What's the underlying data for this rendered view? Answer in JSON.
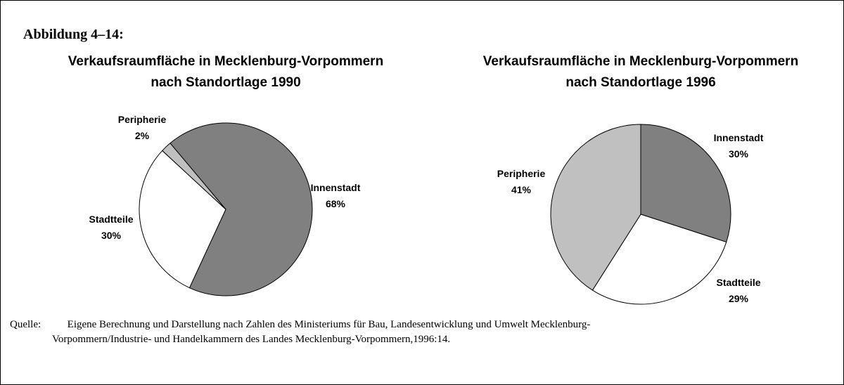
{
  "header": {
    "title": "Abbildung 4–14:"
  },
  "chart_data": [
    {
      "type": "pie",
      "title": "Verkaufsraumfläche in Mecklenburg-Vorpommern",
      "subtitle": "nach Standortlage 1990",
      "categories": [
        "Innenstadt",
        "Stadtteile",
        "Peripherie"
      ],
      "values": [
        68,
        30,
        2
      ],
      "value_labels": [
        "68%",
        "30%",
        "2%"
      ],
      "colors": [
        "#808080",
        "#ffffff",
        "#c0c0c0"
      ]
    },
    {
      "type": "pie",
      "title": "Verkaufsraumfläche in Mecklenburg-Vorpommern",
      "subtitle": "nach Standortlage 1996",
      "categories": [
        "Innenstadt",
        "Stadtteile",
        "Peripherie"
      ],
      "values": [
        30,
        29,
        41
      ],
      "value_labels": [
        "30%",
        "29%",
        "41%"
      ],
      "colors": [
        "#808080",
        "#ffffff",
        "#c0c0c0"
      ]
    }
  ],
  "source": {
    "label": "Quelle:",
    "text1": "Eigene Berechnung und Darstellung nach Zahlen des Ministeriums für Bau, Landesentwicklung und Umwelt Mecklenburg-",
    "text2": "Vorpommern/Industrie- und Handelkammern des Landes Mecklenburg-Vorpommern,1996:14."
  }
}
